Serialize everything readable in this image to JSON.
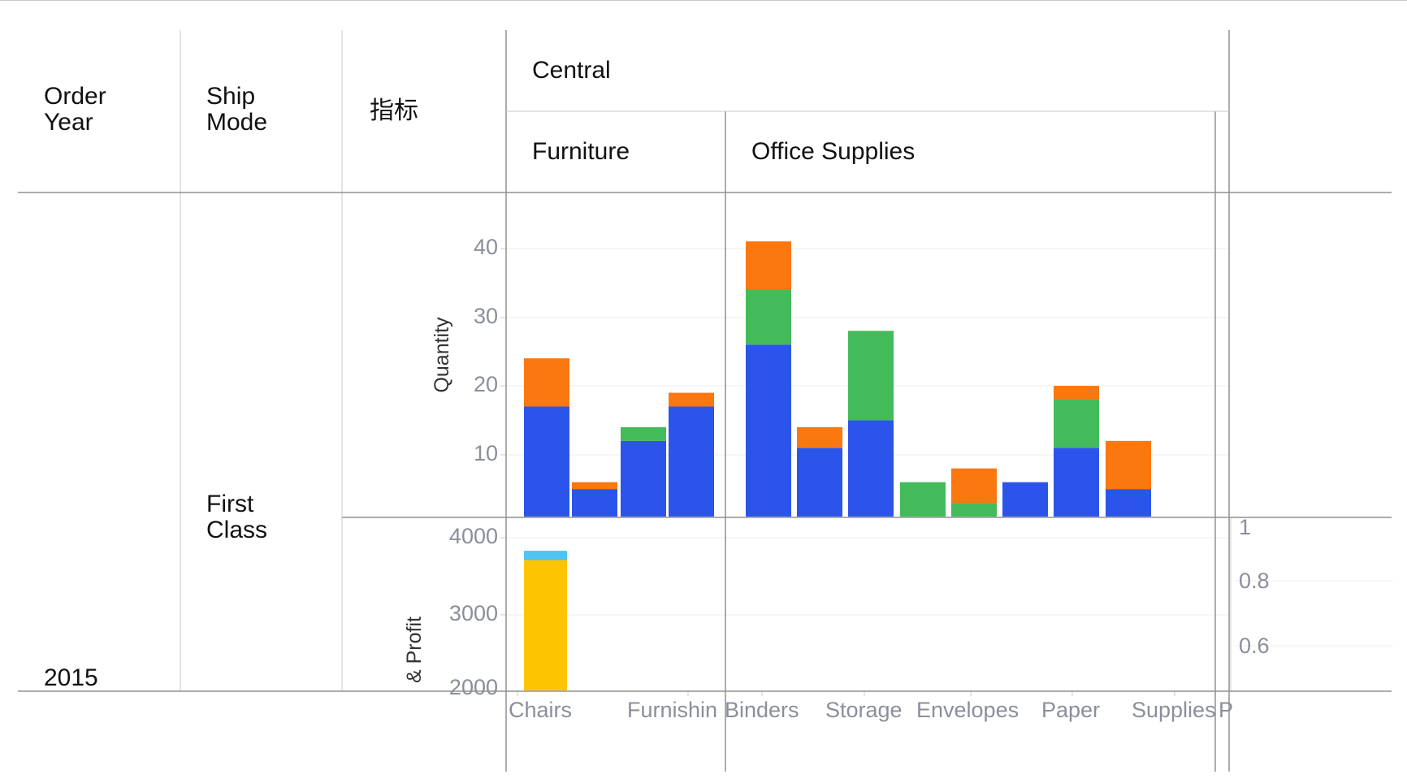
{
  "headers": {
    "order_year": [
      "Order",
      "Year"
    ],
    "ship_mode": [
      "Ship",
      "Mode"
    ],
    "metric": "指标",
    "region": "Central",
    "categories": [
      "Furniture",
      "Office Supplies"
    ]
  },
  "rows": {
    "year": "2015",
    "ship_mode": [
      "First",
      "Class"
    ]
  },
  "colors": {
    "blue": "#2b55ea",
    "orange": "#fb770f",
    "green": "#43bb5b",
    "yellow": "#fdc500",
    "light_blue": "#4fc3f1"
  },
  "chart_data": [
    {
      "type": "bar",
      "stacked": true,
      "ylabel": "Quantity",
      "ylim": [
        0,
        45
      ],
      "yticks": [
        10,
        20,
        30,
        40
      ],
      "grid": true,
      "groups": [
        {
          "name": "Furniture",
          "bars": [
            {
              "segments": [
                {
                  "value": 16,
                  "color": "#2b55ea"
                },
                {
                  "value": 7,
                  "color": "#fb770f"
                }
              ]
            },
            {
              "segments": [
                {
                  "value": 4,
                  "color": "#2b55ea"
                },
                {
                  "value": 1,
                  "color": "#fb770f"
                }
              ]
            },
            {
              "segments": [
                {
                  "value": 11,
                  "color": "#2b55ea"
                },
                {
                  "value": 2,
                  "color": "#43bb5b"
                }
              ]
            },
            {
              "segments": [
                {
                  "value": 16,
                  "color": "#2b55ea"
                },
                {
                  "value": 2,
                  "color": "#fb770f"
                }
              ]
            }
          ]
        },
        {
          "name": "Office Supplies",
          "bars": [
            {
              "segments": [
                {
                  "value": 25,
                  "color": "#2b55ea"
                },
                {
                  "value": 8,
                  "color": "#43bb5b"
                },
                {
                  "value": 7,
                  "color": "#fb770f"
                }
              ]
            },
            {
              "segments": [
                {
                  "value": 10,
                  "color": "#2b55ea"
                },
                {
                  "value": 3,
                  "color": "#fb770f"
                }
              ]
            },
            {
              "segments": [
                {
                  "value": 14,
                  "color": "#2b55ea"
                },
                {
                  "value": 13,
                  "color": "#43bb5b"
                }
              ]
            },
            {
              "segments": [
                {
                  "value": 5,
                  "color": "#43bb5b"
                }
              ]
            },
            {
              "segments": [
                {
                  "value": 2,
                  "color": "#43bb5b"
                },
                {
                  "value": 5,
                  "color": "#fb770f"
                }
              ]
            },
            {
              "segments": [
                {
                  "value": 5,
                  "color": "#2b55ea"
                }
              ]
            },
            {
              "segments": [
                {
                  "value": 10,
                  "color": "#2b55ea"
                },
                {
                  "value": 7,
                  "color": "#43bb5b"
                },
                {
                  "value": 2,
                  "color": "#fb770f"
                }
              ]
            },
            {
              "segments": [
                {
                  "value": 4,
                  "color": "#2b55ea"
                },
                {
                  "value": 7,
                  "color": "#fb770f"
                }
              ]
            }
          ]
        }
      ]
    },
    {
      "type": "bar",
      "stacked": true,
      "ylabel": "& Profit",
      "ylim": [
        2000,
        4200
      ],
      "yticks": [
        2000,
        3000,
        4000
      ],
      "grid": true,
      "bars": [
        {
          "category": "Chairs",
          "segments": [
            {
              "value": 3680,
              "color": "#fdc500"
            },
            {
              "value": 120,
              "color": "#4fc3f1"
            }
          ]
        }
      ],
      "right_axis": {
        "ticks": [
          0.6,
          0.8,
          1
        ],
        "ylim": [
          0.5,
          1
        ]
      }
    }
  ],
  "x_categories": [
    "Chairs",
    "Furnishin",
    "Binders",
    "Storage",
    "Envelopes",
    "Paper",
    "Supplies",
    "P"
  ]
}
